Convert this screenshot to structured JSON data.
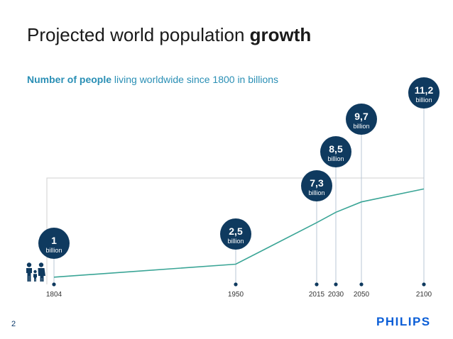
{
  "title": {
    "regular": "Projected world population ",
    "bold": "growth"
  },
  "subtitle": {
    "bold": "Number of people",
    "regular": " living worldwide since 1800 in billions"
  },
  "page_number": "2",
  "logo_text": "PHILIPS",
  "colors": {
    "bubble": "#0f3a5f",
    "line": "#3aa596",
    "accent_text": "#2a8fb5",
    "logo": "#0b5ed7",
    "frame": "#d0d0d0"
  },
  "icon": "family-icon",
  "chart_data": {
    "type": "line",
    "title": "Number of people living worldwide since 1800 in billions",
    "xlabel": "",
    "ylabel": "",
    "x": [
      1804,
      1950,
      2015,
      2030,
      2050,
      2100
    ],
    "x_tick_labels": [
      "1804",
      "1950",
      "2015",
      "2030",
      "2050",
      "2100"
    ],
    "values": [
      1,
      2.5,
      7.3,
      8.5,
      9.7,
      11.2
    ],
    "value_labels": [
      "1",
      "2,5",
      "7,3",
      "8,5",
      "9,7",
      "11,2"
    ],
    "unit_label": "billion",
    "ylim": [
      0,
      11.2
    ]
  }
}
